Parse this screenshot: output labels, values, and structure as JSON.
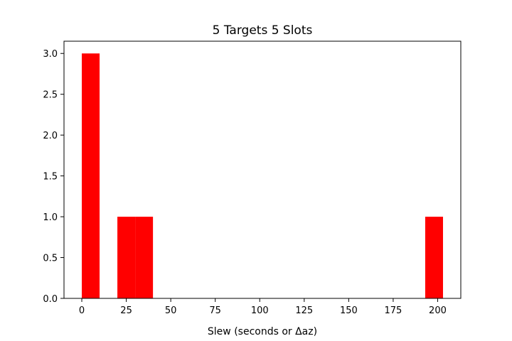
{
  "chart_data": {
    "type": "bar",
    "title": "5 Targets 5 Slots",
    "xlabel": "Slew (seconds or Δaz)",
    "ylabel": "",
    "xlim": [
      -10,
      213
    ],
    "ylim": [
      0,
      3.15
    ],
    "xticks": [
      0,
      25,
      50,
      75,
      100,
      125,
      150,
      175,
      200
    ],
    "yticks": [
      0.0,
      0.5,
      1.0,
      1.5,
      2.0,
      2.5,
      3.0
    ],
    "ytick_labels": [
      "0.0",
      "0.5",
      "1.0",
      "1.5",
      "2.0",
      "2.5",
      "3.0"
    ],
    "grid": false,
    "bar_color": "#ff0000",
    "bins": [
      {
        "start": 0,
        "end": 10,
        "count": 3
      },
      {
        "start": 20,
        "end": 30,
        "count": 1
      },
      {
        "start": 30,
        "end": 40,
        "count": 1
      },
      {
        "start": 193,
        "end": 203,
        "count": 1
      }
    ]
  }
}
